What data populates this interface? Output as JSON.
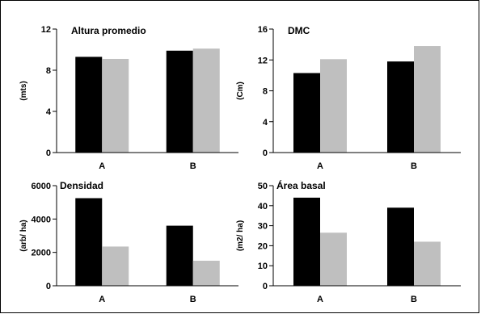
{
  "chart_data": [
    {
      "type": "bar",
      "title": "Altura promedio",
      "ylabel": "(mts)",
      "xlabel": "",
      "categories": [
        "A",
        "B"
      ],
      "series": [
        {
          "values": [
            9.3,
            9.9
          ],
          "color": "#000000"
        },
        {
          "values": [
            9.1,
            10.1
          ],
          "color": "#bfbfbf"
        }
      ],
      "ylim": [
        0,
        12
      ],
      "yticks": [
        0,
        4,
        8,
        12
      ],
      "ytick_labels": [
        "0",
        "4",
        "8",
        "12"
      ],
      "grid": false
    },
    {
      "type": "bar",
      "title": "DMC",
      "ylabel": "(Cm)",
      "xlabel": "",
      "categories": [
        "A",
        "B"
      ],
      "series": [
        {
          "values": [
            10.3,
            11.8
          ],
          "color": "#000000"
        },
        {
          "values": [
            12.1,
            13.8
          ],
          "color": "#bfbfbf"
        }
      ],
      "ylim": [
        0,
        16
      ],
      "yticks": [
        0,
        4,
        8,
        12,
        16
      ],
      "ytick_labels": [
        "0",
        "4",
        "8",
        "12",
        "16"
      ],
      "grid": false
    },
    {
      "type": "bar",
      "title": "Densidad",
      "ylabel": "(arb/ ha)",
      "xlabel": "",
      "categories": [
        "A",
        "B"
      ],
      "series": [
        {
          "values": [
            5250,
            3600
          ],
          "color": "#000000"
        },
        {
          "values": [
            2350,
            1500
          ],
          "color": "#bfbfbf"
        }
      ],
      "ylim": [
        0,
        6000
      ],
      "yticks": [
        0,
        2000,
        4000,
        6000
      ],
      "ytick_labels": [
        "0",
        "2000",
        "4000",
        "6000"
      ],
      "grid": false
    },
    {
      "type": "bar",
      "title": "Área basal",
      "ylabel": "(m2/ ha)",
      "xlabel": "",
      "categories": [
        "A",
        "B"
      ],
      "series": [
        {
          "values": [
            44,
            39
          ],
          "color": "#000000"
        },
        {
          "values": [
            26.5,
            22
          ],
          "color": "#bfbfbf"
        }
      ],
      "ylim": [
        0,
        50
      ],
      "yticks": [
        0,
        10,
        20,
        30,
        40,
        50
      ],
      "ytick_labels": [
        "0",
        "10",
        "20",
        "30",
        "40",
        "50"
      ],
      "grid": false
    }
  ]
}
